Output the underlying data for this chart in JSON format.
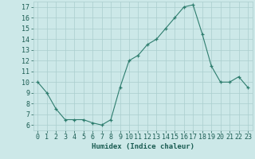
{
  "x": [
    0,
    1,
    2,
    3,
    4,
    5,
    6,
    7,
    8,
    9,
    10,
    11,
    12,
    13,
    14,
    15,
    16,
    17,
    18,
    19,
    20,
    21,
    22,
    23
  ],
  "y": [
    10,
    9,
    7.5,
    6.5,
    6.5,
    6.5,
    6.2,
    6.0,
    6.5,
    9.5,
    12.0,
    12.5,
    13.5,
    14.0,
    15.0,
    16.0,
    17.0,
    17.2,
    14.5,
    11.5,
    10.0,
    10.0,
    10.5,
    9.5
  ],
  "xlabel": "Humidex (Indice chaleur)",
  "xlim": [
    -0.5,
    23.5
  ],
  "ylim": [
    5.5,
    17.5
  ],
  "yticks": [
    6,
    7,
    8,
    9,
    10,
    11,
    12,
    13,
    14,
    15,
    16,
    17
  ],
  "xticks": [
    0,
    1,
    2,
    3,
    4,
    5,
    6,
    7,
    8,
    9,
    10,
    11,
    12,
    13,
    14,
    15,
    16,
    17,
    18,
    19,
    20,
    21,
    22,
    23
  ],
  "line_color": "#2e7d6e",
  "marker_color": "#2e7d6e",
  "bg_color": "#cce8e8",
  "grid_color": "#aacece",
  "label_color": "#1a5c52",
  "tick_label_color": "#1a5c52",
  "xlabel_fontsize": 6.5,
  "tick_fontsize": 6.0
}
